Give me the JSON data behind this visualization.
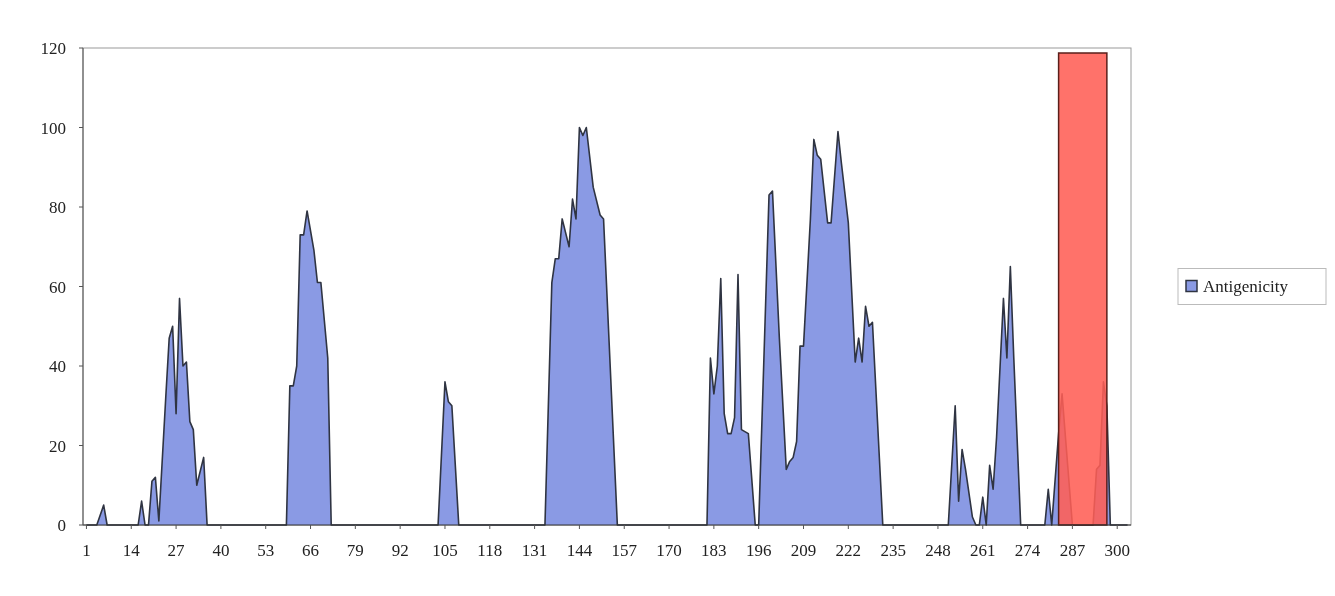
{
  "chart_data": {
    "type": "area",
    "xlim": [
      0,
      304
    ],
    "xticks": [
      1,
      14,
      27,
      40,
      53,
      66,
      79,
      92,
      105,
      118,
      131,
      144,
      157,
      170,
      183,
      196,
      209,
      222,
      235,
      248,
      261,
      274,
      287,
      300
    ],
    "ylim": [
      0,
      120
    ],
    "yticks": [
      0,
      20,
      40,
      60,
      80,
      100,
      120
    ],
    "grid": false,
    "legend": "right",
    "series": [
      {
        "name": "Antigenicity",
        "color": "#8a9ae4",
        "x": [
          1,
          4,
          6,
          7,
          16,
          17,
          18,
          19,
          20,
          21,
          22,
          24,
          25,
          26,
          27,
          28,
          29,
          30,
          31,
          32,
          33,
          35,
          36,
          59,
          60,
          61,
          62,
          63,
          64,
          65,
          67,
          68,
          69,
          71,
          72,
          103,
          105,
          106,
          107,
          109,
          134,
          136,
          137,
          138,
          139,
          141,
          142,
          143,
          144,
          145,
          146,
          148,
          150,
          151,
          155,
          181,
          182,
          183,
          184,
          185,
          186,
          187,
          188,
          189,
          190,
          191,
          193,
          195,
          196,
          199,
          200,
          202,
          204,
          205,
          206,
          207,
          208,
          209,
          211,
          212,
          213,
          214,
          216,
          217,
          219,
          220,
          222,
          224,
          225,
          226,
          227,
          228,
          229,
          232,
          251,
          253,
          254,
          255,
          256,
          258,
          259,
          260,
          261,
          262,
          263,
          264,
          265,
          267,
          268,
          269,
          270,
          272,
          279,
          280,
          281,
          283,
          284,
          287,
          293,
          294,
          295,
          296,
          297,
          298,
          303
        ],
        "values": [
          0,
          0,
          5,
          0,
          0,
          6,
          0,
          0,
          11,
          12,
          1,
          32,
          47,
          50,
          28,
          57,
          40,
          41,
          26,
          24,
          10,
          17,
          0,
          0,
          35,
          35,
          40,
          73,
          73,
          79,
          69,
          61,
          61,
          42,
          0,
          0,
          36,
          31,
          30,
          0,
          0,
          61,
          67,
          67,
          77,
          70,
          82,
          77,
          100,
          98,
          100,
          85,
          78,
          77,
          0,
          0,
          42,
          33,
          40,
          62,
          28,
          23,
          23,
          27,
          63,
          24,
          23,
          0,
          0,
          83,
          84,
          47,
          14,
          16,
          17,
          21,
          45,
          45,
          77,
          97,
          93,
          92,
          76,
          76,
          99,
          91,
          76,
          41,
          47,
          41,
          55,
          50,
          51,
          0,
          0,
          30,
          6,
          19,
          14,
          2,
          0,
          0,
          7,
          0,
          15,
          9,
          22,
          57,
          42,
          65,
          42,
          0,
          0,
          9,
          0,
          23,
          33,
          0,
          0,
          14,
          15,
          36,
          30,
          0,
          0
        ]
      }
    ],
    "bands": [
      {
        "axis": "x",
        "from": 283,
        "to": 297,
        "color": "#ff5f55"
      }
    ]
  }
}
